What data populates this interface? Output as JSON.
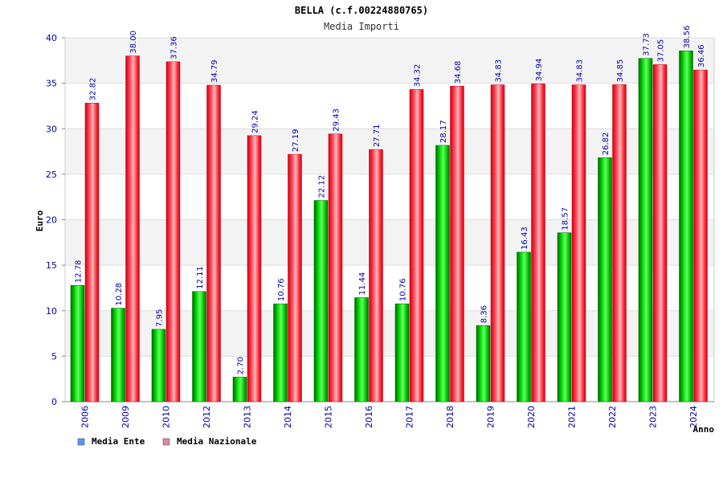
{
  "chart_data": {
    "type": "bar",
    "title": "BELLA (c.f.00224880765)",
    "subtitle": "Media Importi",
    "xlabel": "Anno",
    "ylabel": "Euro",
    "ylim": [
      0,
      40
    ],
    "yticks": [
      "0",
      "5",
      "10",
      "15",
      "20",
      "25",
      "30",
      "35",
      "40"
    ],
    "categories": [
      "2006",
      "2009",
      "2010",
      "2012",
      "2013",
      "2014",
      "2015",
      "2016",
      "2017",
      "2018",
      "2019",
      "2020",
      "2021",
      "2022",
      "2023",
      "2024"
    ],
    "series": [
      {
        "name": "Media Ente",
        "color": "#00bb00",
        "legend_color": "#5599ee",
        "values": [
          12.78,
          10.28,
          7.95,
          12.11,
          2.7,
          10.76,
          22.12,
          11.44,
          10.76,
          28.17,
          8.36,
          16.43,
          18.57,
          26.82,
          37.73,
          38.56
        ],
        "labels": [
          "12.78",
          "10.28",
          "7.95",
          "12.11",
          "2.70",
          "10.76",
          "22.12",
          "11.44",
          "10.76",
          "28.17",
          "8.36",
          "16.43",
          "18.57",
          "26.82",
          "37.73",
          "38.56"
        ]
      },
      {
        "name": "Media Nazionale",
        "color": "#ee1122",
        "legend_color": "#dd88aa",
        "values": [
          32.82,
          38.0,
          37.36,
          34.79,
          29.24,
          27.19,
          29.43,
          27.71,
          34.32,
          34.68,
          34.83,
          34.94,
          34.83,
          34.85,
          37.05,
          36.46
        ],
        "labels": [
          "32.82",
          "38.00",
          "37.36",
          "34.79",
          "29.24",
          "27.19",
          "29.43",
          "27.71",
          "34.32",
          "34.68",
          "34.83",
          "34.94",
          "34.83",
          "34.85",
          "37.05",
          "36.46"
        ]
      }
    ],
    "grid": true,
    "legend_position": "bottom-left"
  }
}
